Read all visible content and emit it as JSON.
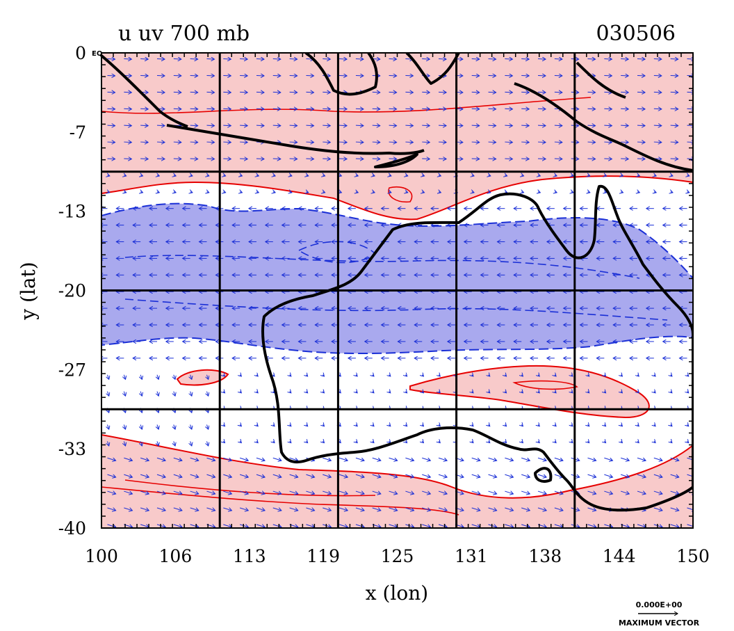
{
  "title_left": "u uv 700 mb",
  "title_right": "030506",
  "corner_label": "EQ",
  "xlabel": "x (lon)",
  "ylabel": "y (lat)",
  "x_ticks": [
    "100",
    "106",
    "113",
    "119",
    "125",
    "131",
    "138",
    "144",
    "150"
  ],
  "y_ticks": [
    "0",
    "-7",
    "-13",
    "-20",
    "-27",
    "-33",
    "-40"
  ],
  "x_tick_values": [
    100,
    106.25,
    112.5,
    118.75,
    125,
    131.25,
    137.5,
    143.75,
    150
  ],
  "y_tick_values": [
    0,
    -6.67,
    -13.33,
    -20,
    -26.67,
    -33.33,
    -40
  ],
  "grid_lon": [
    110,
    120,
    130,
    140
  ],
  "grid_lat": [
    -10,
    -20,
    -30
  ],
  "xlim": [
    100,
    150
  ],
  "ylim": [
    -40,
    0
  ],
  "colors": {
    "westerly_fill": "#f8caca",
    "westerly_contour": "#e60000",
    "easterly_fill": "#a9a9ee",
    "easterly_contour": "#1a2fd6",
    "vector": "#1a2fd6",
    "coast": "#000000",
    "grid": "#000000"
  },
  "legend": {
    "value_label": "0.000E+00",
    "caption": "MAXIMUM VECTOR"
  }
}
